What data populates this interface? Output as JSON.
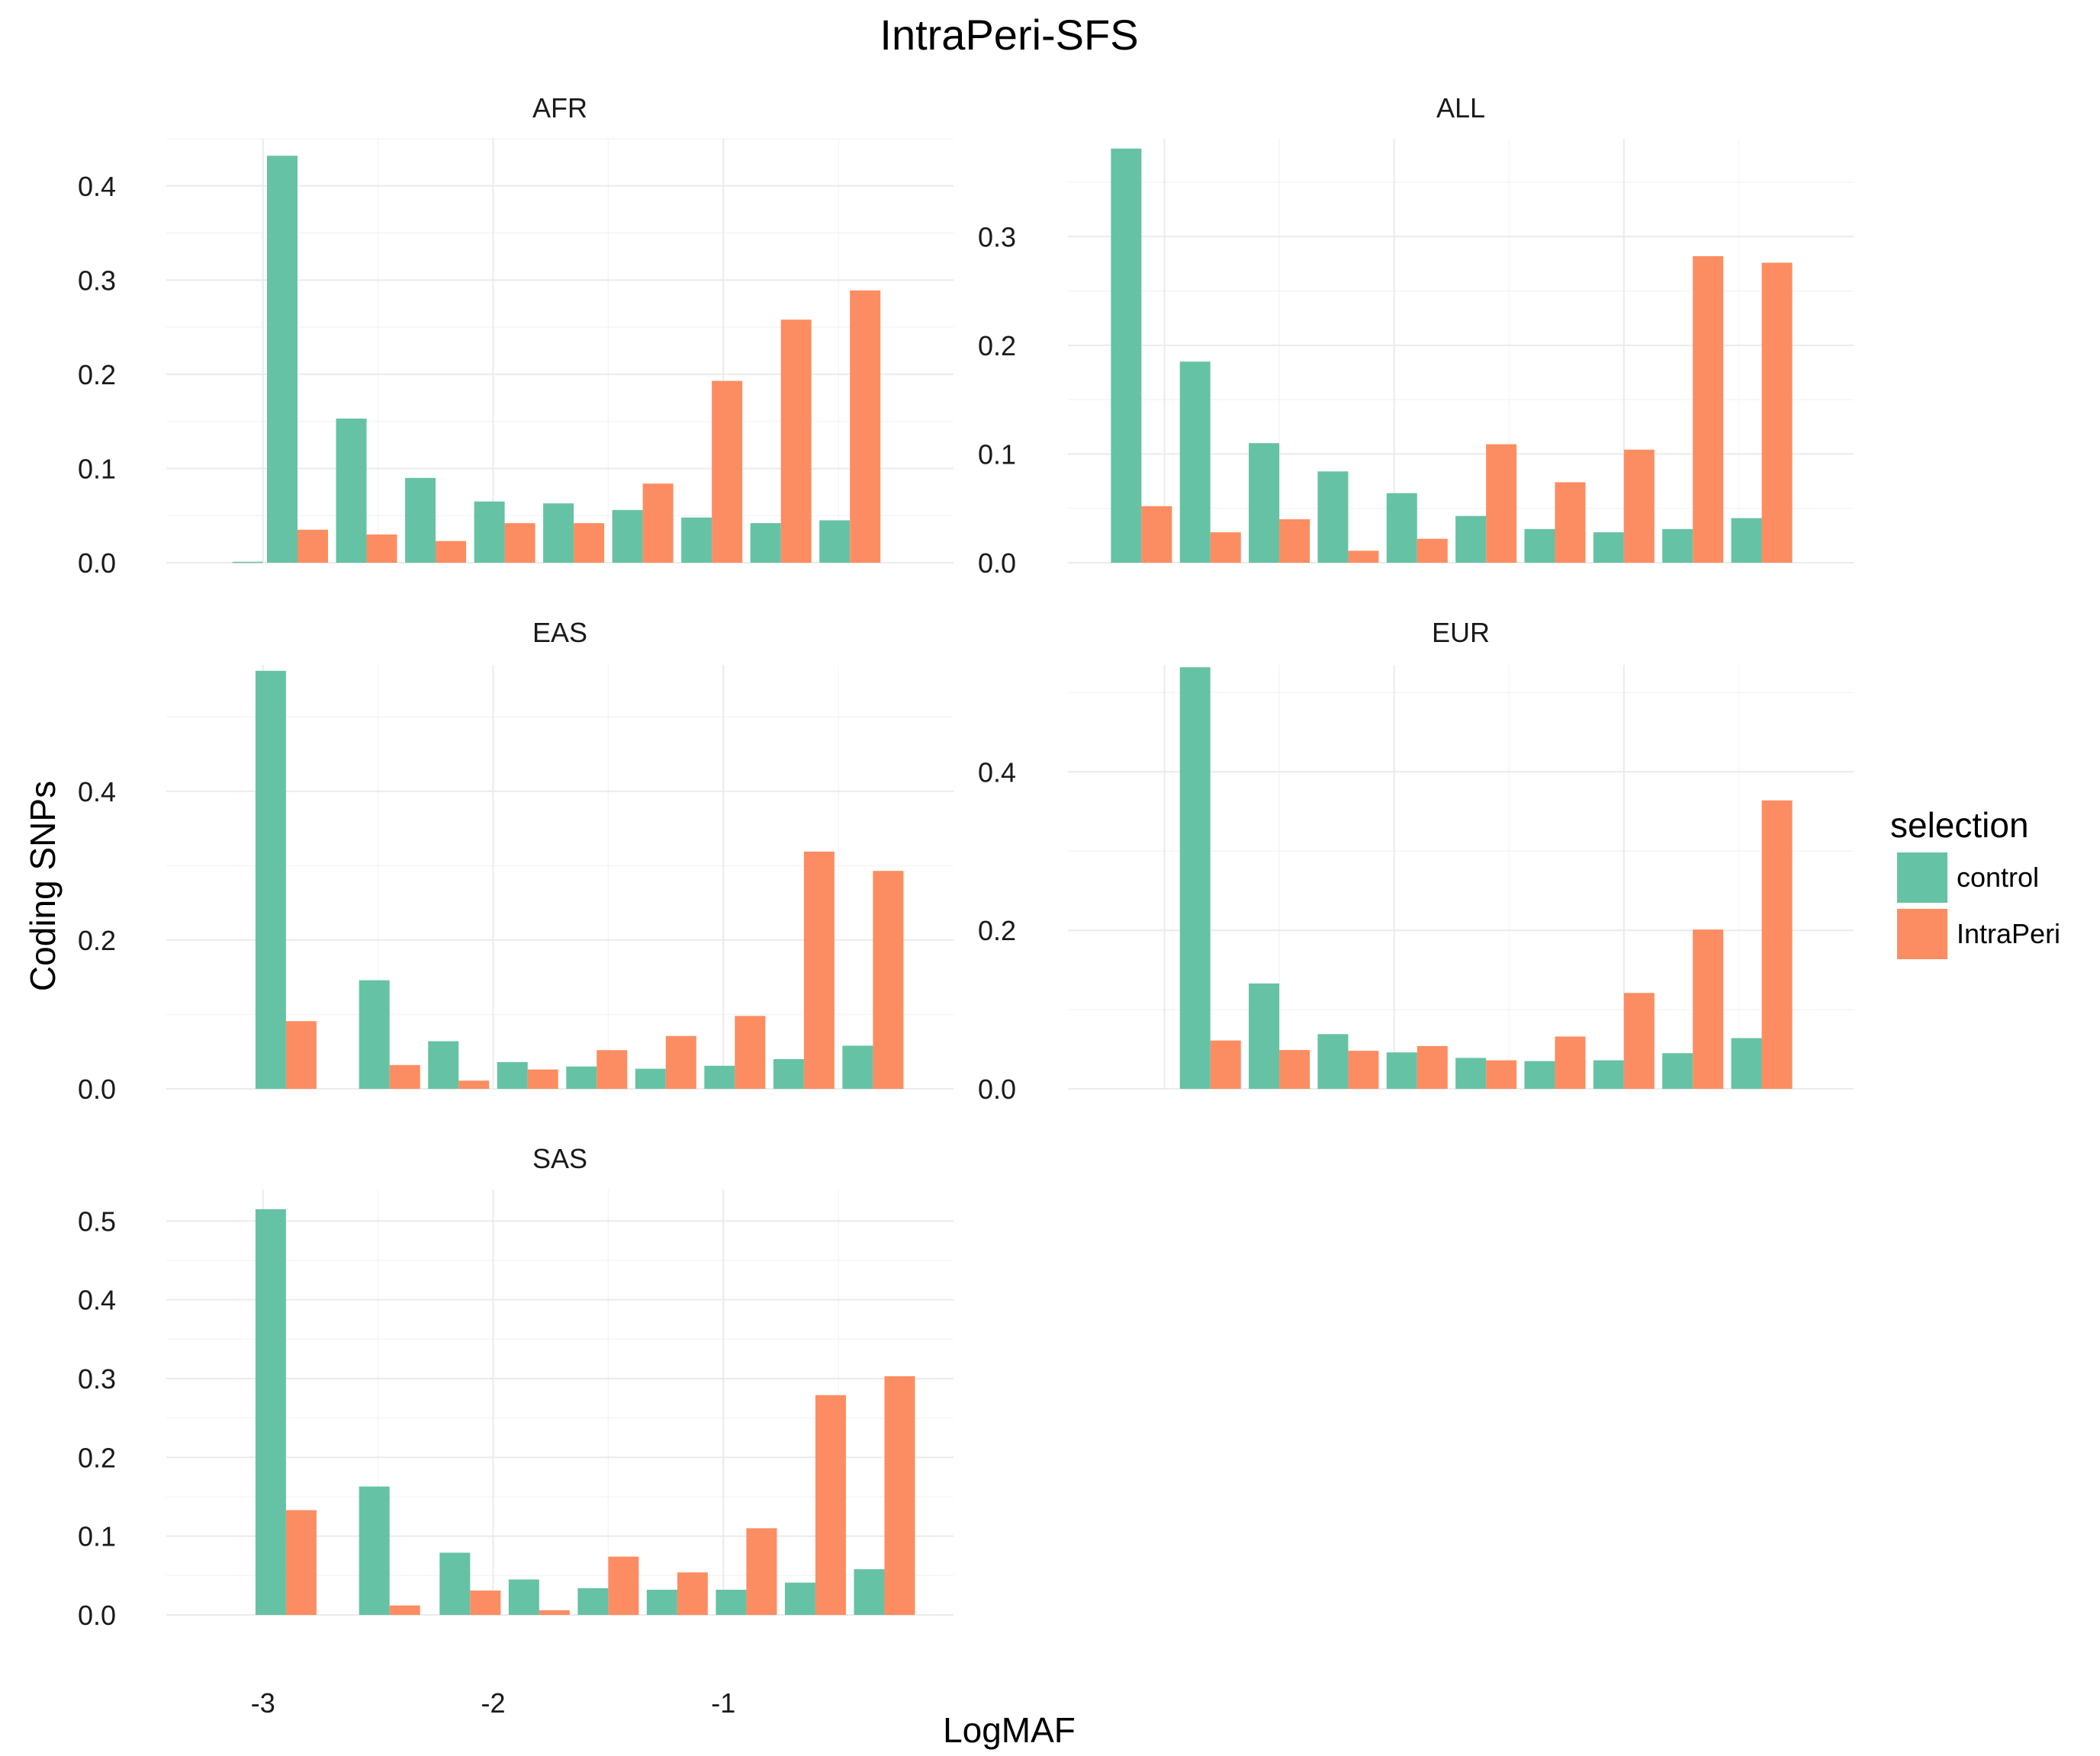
{
  "chart_data": {
    "type": "bar",
    "title": "IntraPeri-SFS",
    "xlabel": "LogMAF",
    "ylabel": "Coding SNPs",
    "x_ticks": [
      -3,
      -2,
      -1
    ],
    "xlim": [
      -3.42,
      0.0
    ],
    "legend": {
      "title": "selection",
      "placement": "right",
      "entries": [
        "control",
        "IntraPeri"
      ]
    },
    "colors": {
      "control": "#66c2a5",
      "IntraPeri": "#fc8d62"
    },
    "facets": [
      {
        "label": "AFR",
        "ylim": [
          0,
          0.45
        ],
        "yticks": [
          0.0,
          0.1,
          0.2,
          0.3,
          0.4
        ],
        "groups": [
          {
            "x": -3.0,
            "control": 0.001,
            "IntraPeri": null
          },
          {
            "x": -2.85,
            "control": 0.432,
            "IntraPeri": 0.035
          },
          {
            "x": -2.55,
            "control": 0.153,
            "IntraPeri": 0.03
          },
          {
            "x": -2.25,
            "control": 0.09,
            "IntraPeri": 0.023
          },
          {
            "x": -1.95,
            "control": 0.065,
            "IntraPeri": 0.042
          },
          {
            "x": -1.65,
            "control": 0.063,
            "IntraPeri": 0.042
          },
          {
            "x": -1.35,
            "control": 0.056,
            "IntraPeri": 0.084
          },
          {
            "x": -1.05,
            "control": 0.048,
            "IntraPeri": 0.193
          },
          {
            "x": -0.75,
            "control": 0.042,
            "IntraPeri": 0.258
          },
          {
            "x": -0.45,
            "control": 0.045,
            "IntraPeri": 0.289
          }
        ]
      },
      {
        "label": "ALL",
        "ylim": [
          0,
          0.39
        ],
        "yticks": [
          0.0,
          0.1,
          0.2,
          0.3
        ],
        "groups": [
          {
            "x": -3.1,
            "control": 0.381,
            "IntraPeri": 0.052
          },
          {
            "x": -2.8,
            "control": 0.185,
            "IntraPeri": 0.028
          },
          {
            "x": -2.5,
            "control": 0.11,
            "IntraPeri": 0.04
          },
          {
            "x": -2.2,
            "control": 0.084,
            "IntraPeri": 0.011
          },
          {
            "x": -1.9,
            "control": 0.064,
            "IntraPeri": 0.022
          },
          {
            "x": -1.6,
            "control": 0.043,
            "IntraPeri": 0.109
          },
          {
            "x": -1.3,
            "control": 0.031,
            "IntraPeri": 0.074
          },
          {
            "x": -1.0,
            "control": 0.028,
            "IntraPeri": 0.104
          },
          {
            "x": -0.7,
            "control": 0.031,
            "IntraPeri": 0.282
          },
          {
            "x": -0.4,
            "control": 0.041,
            "IntraPeri": 0.276
          }
        ]
      },
      {
        "label": "EAS",
        "ylim": [
          0,
          0.57
        ],
        "yticks": [
          0.0,
          0.2,
          0.4
        ],
        "groups": [
          {
            "x": -2.9,
            "control": 0.562,
            "IntraPeri": 0.091
          },
          {
            "x": -2.45,
            "control": 0.146,
            "IntraPeri": 0.032
          },
          {
            "x": -2.15,
            "control": 0.064,
            "IntraPeri": 0.011
          },
          {
            "x": -1.85,
            "control": 0.036,
            "IntraPeri": 0.026
          },
          {
            "x": -1.55,
            "control": 0.03,
            "IntraPeri": 0.052
          },
          {
            "x": -1.25,
            "control": 0.027,
            "IntraPeri": 0.071
          },
          {
            "x": -0.95,
            "control": 0.031,
            "IntraPeri": 0.098
          },
          {
            "x": -0.65,
            "control": 0.04,
            "IntraPeri": 0.319
          },
          {
            "x": -0.35,
            "control": 0.058,
            "IntraPeri": 0.293
          }
        ]
      },
      {
        "label": "EUR",
        "ylim": [
          0,
          0.535
        ],
        "yticks": [
          0.0,
          0.2,
          0.4
        ],
        "groups": [
          {
            "x": -2.8,
            "control": 0.532,
            "IntraPeri": 0.061
          },
          {
            "x": -2.5,
            "control": 0.133,
            "IntraPeri": 0.049
          },
          {
            "x": -2.2,
            "control": 0.069,
            "IntraPeri": 0.048
          },
          {
            "x": -1.9,
            "control": 0.046,
            "IntraPeri": 0.054
          },
          {
            "x": -1.6,
            "control": 0.039,
            "IntraPeri": 0.036
          },
          {
            "x": -1.3,
            "control": 0.035,
            "IntraPeri": 0.066
          },
          {
            "x": -1.0,
            "control": 0.036,
            "IntraPeri": 0.121
          },
          {
            "x": -0.7,
            "control": 0.045,
            "IntraPeri": 0.201
          },
          {
            "x": -0.4,
            "control": 0.064,
            "IntraPeri": 0.364
          }
        ]
      },
      {
        "label": "SAS",
        "ylim": [
          0,
          0.54
        ],
        "yticks": [
          0.0,
          0.1,
          0.2,
          0.3,
          0.4,
          0.5
        ],
        "groups": [
          {
            "x": -2.9,
            "control": 0.515,
            "IntraPeri": 0.133
          },
          {
            "x": -2.45,
            "control": 0.163,
            "IntraPeri": 0.012
          },
          {
            "x": -2.1,
            "control": 0.079,
            "IntraPeri": 0.031
          },
          {
            "x": -1.8,
            "control": 0.045,
            "IntraPeri": 0.006
          },
          {
            "x": -1.5,
            "control": 0.034,
            "IntraPeri": 0.074
          },
          {
            "x": -1.2,
            "control": 0.032,
            "IntraPeri": 0.054
          },
          {
            "x": -0.9,
            "control": 0.032,
            "IntraPeri": 0.11
          },
          {
            "x": -0.6,
            "control": 0.041,
            "IntraPeri": 0.279
          },
          {
            "x": -0.3,
            "control": 0.058,
            "IntraPeri": 0.303
          }
        ]
      }
    ]
  }
}
